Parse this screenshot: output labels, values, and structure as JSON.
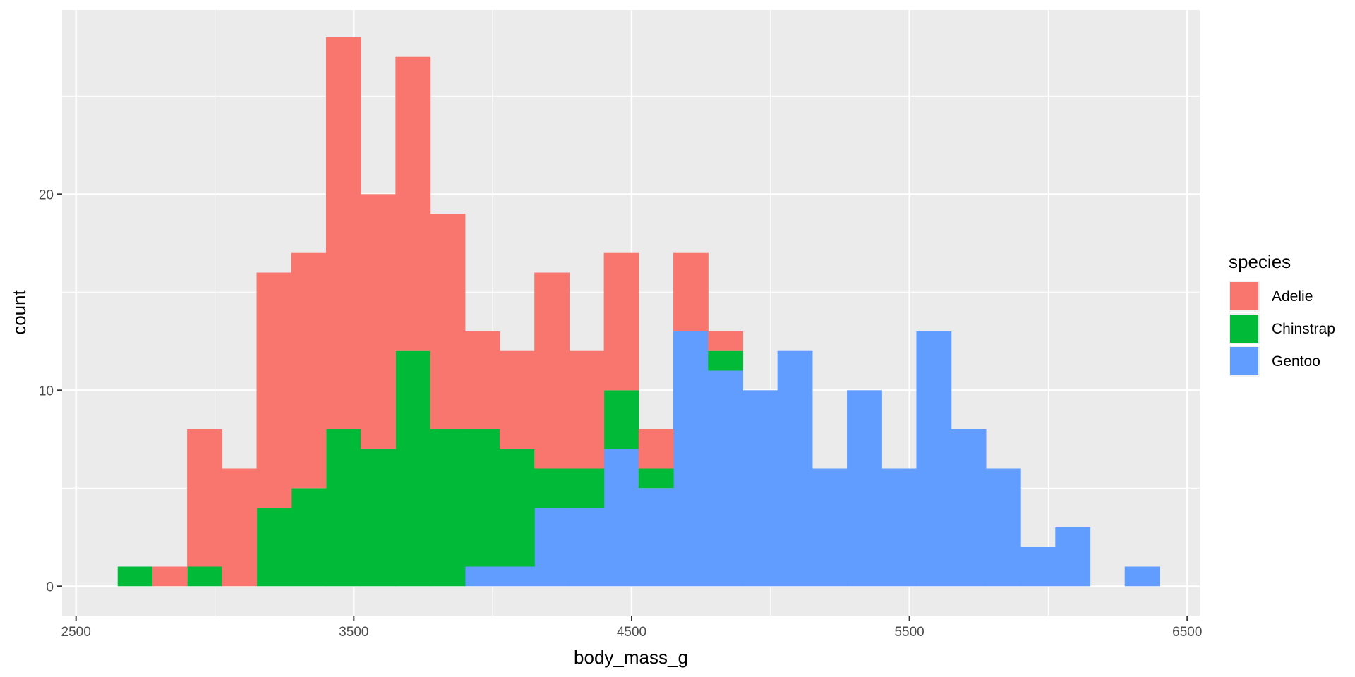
{
  "chart_data": {
    "type": "bar",
    "stacked": true,
    "xlabel": "body_mass_g",
    "ylabel": "count",
    "xlim": [
      2450,
      6545
    ],
    "ylim": [
      -1.5,
      29.4
    ],
    "x_ticks": [
      2500,
      3500,
      4500,
      5500,
      6500
    ],
    "y_ticks": [
      0,
      10,
      20
    ],
    "grid": true,
    "background": "#ebebeb",
    "bins": [
      [
        2650,
        2775
      ],
      [
        2775,
        2900
      ],
      [
        2900,
        3025
      ],
      [
        3025,
        3150
      ],
      [
        3150,
        3275
      ],
      [
        3275,
        3400
      ],
      [
        3400,
        3525
      ],
      [
        3525,
        3650
      ],
      [
        3650,
        3775
      ],
      [
        3775,
        3900
      ],
      [
        3900,
        4025
      ],
      [
        4025,
        4150
      ],
      [
        4150,
        4275
      ],
      [
        4275,
        4400
      ],
      [
        4400,
        4525
      ],
      [
        4525,
        4650
      ],
      [
        4650,
        4775
      ],
      [
        4775,
        4900
      ],
      [
        4900,
        5025
      ],
      [
        5025,
        5150
      ],
      [
        5150,
        5275
      ],
      [
        5275,
        5400
      ],
      [
        5400,
        5525
      ],
      [
        5525,
        5650
      ],
      [
        5650,
        5775
      ],
      [
        5775,
        5900
      ],
      [
        5900,
        6025
      ],
      [
        6025,
        6150
      ],
      [
        6150,
        6275
      ],
      [
        6275,
        6400
      ]
    ],
    "series": [
      {
        "name": "Adelie",
        "color": "#f8766d",
        "values": [
          0,
          1,
          7,
          6,
          12,
          12,
          20,
          13,
          15,
          11,
          5,
          5,
          10,
          6,
          7,
          2,
          4,
          1,
          0,
          0,
          0,
          0,
          0,
          0,
          0,
          0,
          0,
          0,
          0,
          0
        ]
      },
      {
        "name": "Chinstrap",
        "color": "#00ba38",
        "values": [
          1,
          0,
          1,
          0,
          4,
          5,
          8,
          7,
          12,
          8,
          7,
          6,
          2,
          2,
          3,
          1,
          0,
          1,
          0,
          0,
          0,
          0,
          0,
          0,
          0,
          0,
          0,
          0,
          0,
          0
        ]
      },
      {
        "name": "Gentoo",
        "color": "#619cff",
        "values": [
          0,
          0,
          0,
          0,
          0,
          0,
          0,
          0,
          0,
          0,
          1,
          1,
          4,
          4,
          7,
          5,
          13,
          11,
          10,
          12,
          6,
          10,
          6,
          13,
          8,
          6,
          2,
          3,
          0,
          1
        ]
      }
    ],
    "legend": {
      "title": "species",
      "position": "right"
    }
  }
}
